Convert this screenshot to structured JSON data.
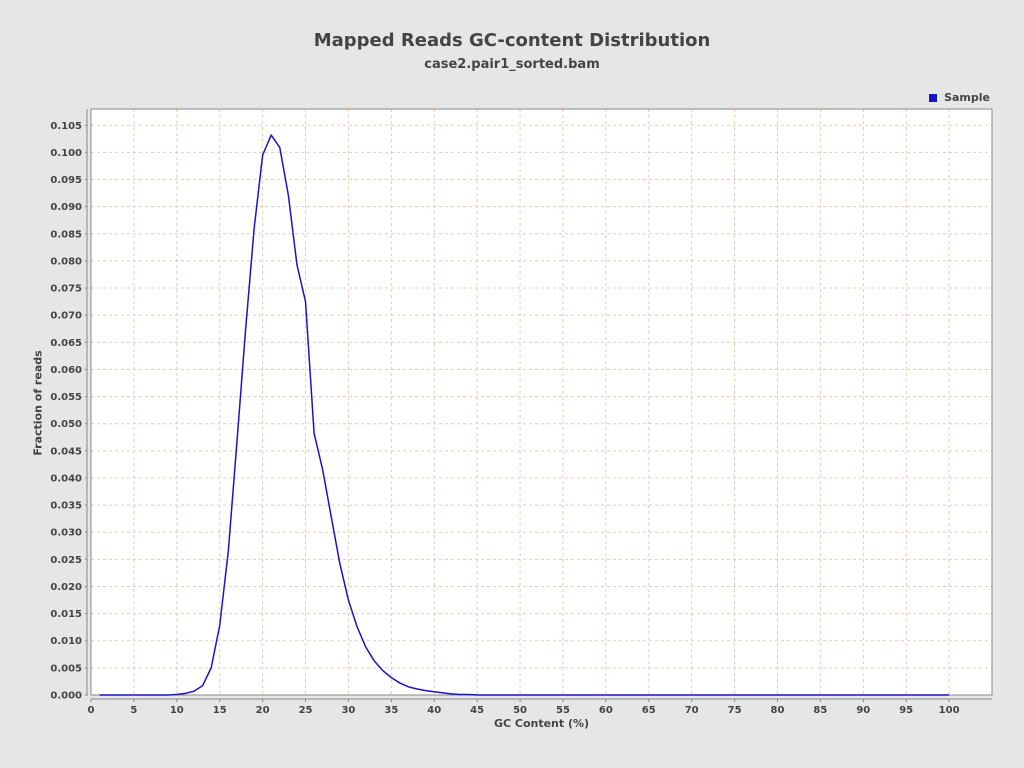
{
  "chart_data": {
    "type": "line",
    "title": "Mapped Reads GC-content Distribution",
    "subtitle": "case2.pair1_sorted.bam",
    "xlabel": "GC Content (%)",
    "ylabel": "Fraction of reads",
    "xlim": [
      0,
      105
    ],
    "ylim": [
      0,
      0.108
    ],
    "xticks": [
      0,
      5,
      10,
      15,
      20,
      25,
      30,
      35,
      40,
      45,
      50,
      55,
      60,
      65,
      70,
      75,
      80,
      85,
      90,
      95,
      100
    ],
    "yticks": [
      0.0,
      0.005,
      0.01,
      0.015,
      0.02,
      0.025,
      0.03,
      0.035,
      0.04,
      0.045,
      0.05,
      0.055,
      0.06,
      0.065,
      0.07,
      0.075,
      0.08,
      0.085,
      0.09,
      0.095,
      0.1,
      0.105
    ],
    "ytick_labels": [
      "0.000",
      "0.005",
      "0.010",
      "0.015",
      "0.020",
      "0.025",
      "0.030",
      "0.035",
      "0.040",
      "0.045",
      "0.050",
      "0.055",
      "0.060",
      "0.065",
      "0.070",
      "0.075",
      "0.080",
      "0.085",
      "0.090",
      "0.095",
      "0.100",
      "0.105"
    ],
    "grid": true,
    "legend_position": "top-right",
    "background": "#e6e6e6",
    "plot_background": "#ffffff",
    "grid_color": "#f0c8b4",
    "series": [
      {
        "name": "Sample",
        "color": "#1a14c8",
        "x": [
          1,
          2,
          3,
          4,
          5,
          6,
          7,
          8,
          9,
          10,
          11,
          12,
          13,
          14,
          15,
          16,
          17,
          18,
          19,
          20,
          21,
          22,
          23,
          24,
          25,
          26,
          27,
          28,
          29,
          30,
          31,
          32,
          33,
          34,
          35,
          36,
          37,
          38,
          39,
          40,
          41,
          42,
          43,
          44,
          45,
          50,
          55,
          60,
          65,
          70,
          75,
          80,
          85,
          90,
          95,
          100
        ],
        "y": [
          0,
          0,
          0,
          0,
          0,
          0,
          0,
          0,
          0,
          0.0001,
          0.0003,
          0.0007,
          0.0017,
          0.005,
          0.0128,
          0.0265,
          0.0465,
          0.067,
          0.0858,
          0.0995,
          0.1032,
          0.1009,
          0.0921,
          0.0793,
          0.0725,
          0.0482,
          0.0415,
          0.0328,
          0.0242,
          0.0175,
          0.0126,
          0.0089,
          0.0063,
          0.0045,
          0.0032,
          0.0022,
          0.0015,
          0.0011,
          0.0008,
          0.0006,
          0.0004,
          0.0002,
          0.0001,
          0.0001,
          0,
          0,
          0,
          0,
          0,
          0,
          0,
          0,
          0,
          0,
          0,
          0
        ]
      }
    ]
  }
}
